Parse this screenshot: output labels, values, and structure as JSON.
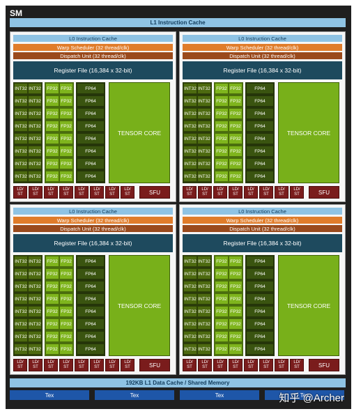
{
  "sm_title": "SM",
  "l1_instruction_cache": "L1 Instruction Cache",
  "partition": {
    "l0_cache": "L0 Instruction Cache",
    "warp_scheduler": "Warp Scheduler (32 thread/clk)",
    "dispatch_unit": "Dispatch Unit (32 thread/clk)",
    "register_file": "Register File (16,384 x 32-bit)",
    "int32": "INT32",
    "fp32": "FP32",
    "fp64": "FP64",
    "tensor_core": "TENSOR CORE",
    "ld": "LD/",
    "st": "ST",
    "sfu": "SFU"
  },
  "l1_data_cache": "192KB L1 Data Cache / Shared Memory",
  "tex": "Tex",
  "watermark": "知乎 @Archer",
  "colors": {
    "l0_cache": "#8fc3e4",
    "warp_scheduler": "#e07c2a",
    "dispatch_unit": "#9a4a1c",
    "register_file": "#1e4a5e",
    "int32": "#4d6a10",
    "fp32": "#7fb51d",
    "fp64": "#3a5410",
    "tensor_core": "#78b01a",
    "ld_st_sfu": "#7a1c1c",
    "tex": "#1e56a8"
  }
}
